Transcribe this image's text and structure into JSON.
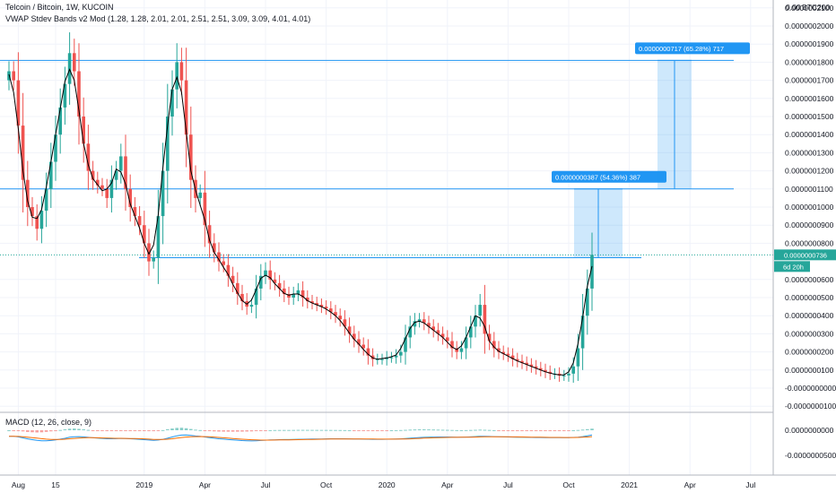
{
  "chart_data": {
    "type": "candlestick",
    "title": "Telcoin / Bitcoin, 1W, KUCOIN",
    "indicator_line": "VWAP Stdev Bands v2 Mod (1.28, 1.28, 2.01, 2.01, 2.51, 2.51, 3.09, 3.09, 4.01, 4.01)",
    "price_unit": "BTC",
    "price_axis_top_label": "0.00",
    "price_axis_top_value": "200",
    "y_ticks": [
      "0.0000002100",
      "0.0000002000",
      "0.0000001900",
      "0.0000001800",
      "0.0000001700",
      "0.0000001600",
      "0.0000001500",
      "0.0000001400",
      "0.0000001300",
      "0.0000001200",
      "0.0000001100",
      "0.0000001000",
      "0.0000000900",
      "0.0000000800",
      "0.0000000600",
      "0.0000000500",
      "0.0000000400",
      "0.0000000300",
      "0.0000000200",
      "0.0000000100",
      "-0.0000000000",
      "-0.0000000100"
    ],
    "y_tick_values": [
      210,
      200,
      190,
      180,
      170,
      160,
      150,
      140,
      130,
      120,
      110,
      100,
      90,
      80,
      60,
      50,
      40,
      30,
      20,
      10,
      0,
      -10
    ],
    "x_ticks": [
      "Aug",
      "15",
      "2019",
      "Apr",
      "Jul",
      "Oct",
      "2020",
      "Apr",
      "Jul",
      "Oct",
      "2021",
      "Apr",
      "Jul"
    ],
    "x_tick_index": [
      2,
      10,
      29,
      42,
      55,
      68,
      81,
      94,
      107,
      120,
      133,
      146,
      159
    ],
    "last_price_label": "0.0000000736",
    "last_price": 73.6,
    "countdown_label": "6d 20h",
    "horizontal_levels": [
      181,
      110,
      72
    ],
    "measures": [
      {
        "label": "0.0000000387 (54.36%) 387",
        "from": 72,
        "to": 110
      },
      {
        "label": "0.0000000717 (65.28%) 717",
        "from": 110,
        "to": 181
      }
    ],
    "close": [
      175,
      170,
      145,
      115,
      100,
      95,
      88,
      98,
      110,
      125,
      140,
      155,
      168,
      185,
      175,
      150,
      135,
      120,
      115,
      112,
      110,
      105,
      115,
      120,
      128,
      110,
      100,
      95,
      90,
      80,
      70,
      72,
      95,
      120,
      150,
      165,
      180,
      170,
      140,
      115,
      105,
      108,
      90,
      80,
      75,
      70,
      68,
      62,
      58,
      52,
      48,
      45,
      46,
      55,
      62,
      65,
      60,
      58,
      55,
      52,
      50,
      52,
      54,
      50,
      48,
      47,
      46,
      45,
      44,
      42,
      40,
      38,
      34,
      30,
      27,
      24,
      22,
      18,
      16,
      16,
      16,
      17,
      17,
      18,
      20,
      28,
      34,
      37,
      38,
      36,
      34,
      32,
      30,
      28,
      26,
      22,
      20,
      22,
      28,
      34,
      40,
      46,
      30,
      26,
      22,
      20,
      19,
      18,
      16,
      15,
      14,
      13,
      12,
      11,
      10,
      9,
      8,
      8,
      7,
      7,
      8,
      12,
      22,
      40,
      55,
      73.6
    ],
    "macd": {
      "label": "MACD (12, 26, close, 9)",
      "y_ticks": [
        "0.0000000000",
        "-0.0000000500"
      ],
      "y_tick_values": [
        0,
        -50
      ]
    },
    "colors": {
      "up": "#26a69a",
      "down": "#ef5350",
      "level": "#2196f3",
      "measure_fill": "#2196f3",
      "vwap": "#000000",
      "macd_line": "#2196f3",
      "signal_line": "#ff6d00"
    }
  }
}
